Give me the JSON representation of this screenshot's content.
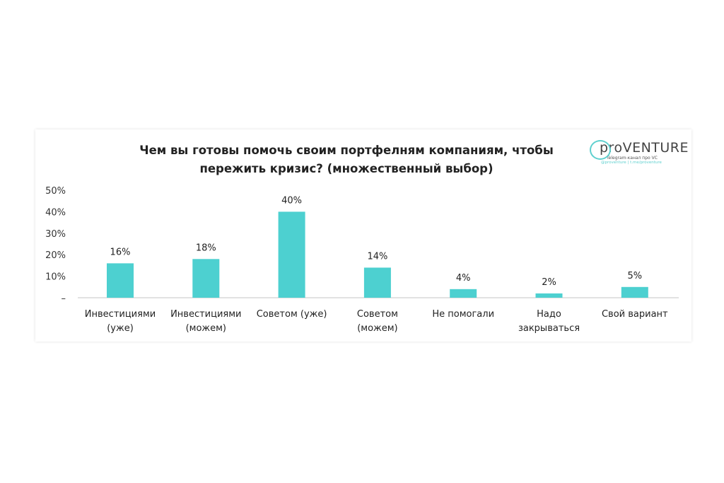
{
  "chart_data": {
    "type": "bar",
    "title": "Чем вы готовы помочь своим портфелням компаниям, чтобы пережить кризис? (множественный выбор)",
    "categories": [
      [
        "Инвестициями",
        "(уже)"
      ],
      [
        "Инвестициями",
        "(можем)"
      ],
      [
        "Советом (уже)"
      ],
      [
        "Советом",
        "(можем)"
      ],
      [
        "Не помогали"
      ],
      [
        "Надо",
        "закрываться"
      ],
      [
        "Свой вариант"
      ]
    ],
    "values": [
      16,
      18,
      40,
      14,
      4,
      2,
      5
    ],
    "data_labels": [
      "16%",
      "18%",
      "40%",
      "14%",
      "4%",
      "2%",
      "5%"
    ],
    "y_ticks": [
      "–",
      "10%",
      "20%",
      "30%",
      "40%",
      "50%"
    ],
    "ylim": [
      0,
      50
    ],
    "grid": false,
    "legend": "none",
    "bar_color": "#4dd0d0"
  },
  "logo": {
    "name": "proVENTURE",
    "subtitle": "Telegram-канал про VC",
    "handle": "@proventure | t.me/proventure"
  }
}
